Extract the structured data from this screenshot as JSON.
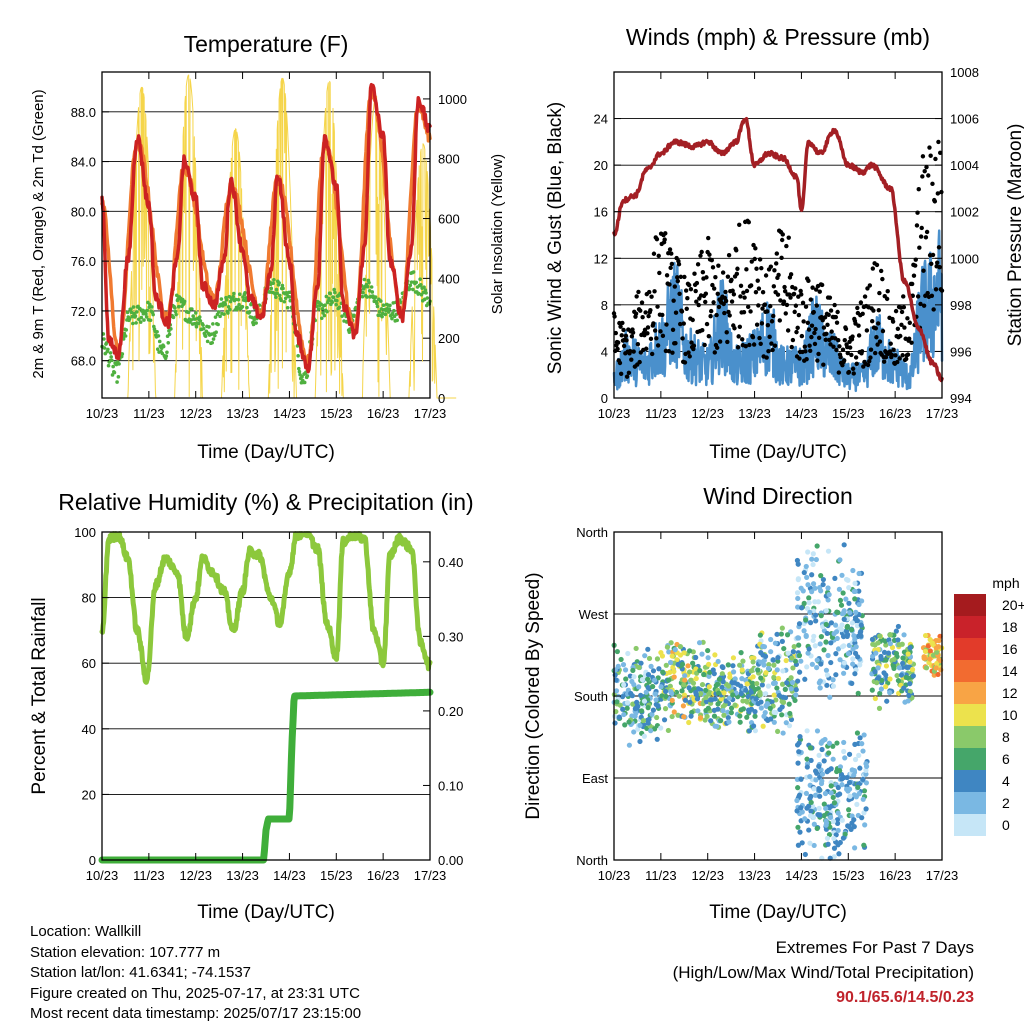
{
  "charts": {
    "temperature": {
      "title": "Temperature (F)",
      "ylabel_left": "2m & 9m T (Red, Orange) & 2m Td (Green)",
      "ylabel_right": "Solar Insolation (Yellow)",
      "xlabel": "Time (Day/UTC)",
      "yticks_left": [
        "68.0",
        "72.0",
        "76.0",
        "80.0",
        "84.0",
        "88.0"
      ],
      "yticks_right": [
        "0",
        "200",
        "400",
        "600",
        "800",
        "1000"
      ]
    },
    "winds": {
      "title": "Winds (mph) & Pressure (mb)",
      "ylabel_left": "Sonic Wind & Gust (Blue, Black)",
      "ylabel_right": "Station Pressure (Maroon)",
      "xlabel": "Time (Day/UTC)",
      "yticks_left": [
        "0",
        "4",
        "8",
        "12",
        "16",
        "20",
        "24"
      ],
      "yticks_right": [
        "994",
        "996",
        "998",
        "1000",
        "1002",
        "1004",
        "1006",
        "1008"
      ]
    },
    "humidity": {
      "title": "Relative Humidity (%) & Precipitation (in)",
      "ylabel_left": "Percent & Total Rainfall",
      "xlabel": "Time (Day/UTC)",
      "yticks_left": [
        "0",
        "20",
        "40",
        "60",
        "80",
        "100"
      ],
      "yticks_right": [
        "0.00",
        "0.10",
        "0.20",
        "0.30",
        "0.40"
      ]
    },
    "direction": {
      "title": "Wind Direction",
      "ylabel_left": "Direction (Colored By Speed)",
      "xlabel": "Time (Day/UTC)",
      "yticks_left": [
        "North",
        "East",
        "South",
        "West",
        "North"
      ],
      "legend_title": "mph",
      "legend_labels": [
        "20+",
        "18",
        "16",
        "14",
        "12",
        "10",
        "8",
        "6",
        "4",
        "2",
        "0"
      ]
    },
    "xticks": [
      "10/23",
      "11/23",
      "12/23",
      "13/23",
      "14/23",
      "15/23",
      "16/23",
      "17/23"
    ]
  },
  "colors": {
    "temp_2m": "#cc2222",
    "temp_9m": "#f07a30",
    "dewpoint": "#4fb03f",
    "solar": "#f5d54a",
    "wind": "#4a90cc",
    "gust": "#000000",
    "pressure": "#a31f24",
    "rh": "#8cc83c",
    "rain": "#3fae3a",
    "extremes": "#c0242c"
  },
  "legend_colors": [
    "#a51b1e",
    "#c9222a",
    "#e23b2a",
    "#f26b30",
    "#f8a445",
    "#ece24d",
    "#8ac96a",
    "#45a66a",
    "#3f86c2",
    "#7ab8e3",
    "#c6e6f7"
  ],
  "chart_data": [
    {
      "type": "line",
      "title": "Temperature (F)",
      "xlabel": "Time (Day/UTC)",
      "ylabel": "2m & 9m T (Red, Orange) & 2m Td (Green)",
      "ylabel_right": "Solar Insolation (Yellow)",
      "x_range": [
        0,
        7
      ],
      "ylim": [
        65,
        91.2
      ],
      "ylim_right": [
        0,
        1090
      ],
      "series": [
        {
          "name": "2m T",
          "axis": "left",
          "x": [
            0,
            0.15,
            0.35,
            0.55,
            0.75,
            1.0,
            1.15,
            1.4,
            1.6,
            1.75,
            2.0,
            2.15,
            2.4,
            2.6,
            2.75,
            3.0,
            3.15,
            3.4,
            3.6,
            3.75,
            4.0,
            4.15,
            4.4,
            4.6,
            4.75,
            5.0,
            5.15,
            5.4,
            5.6,
            5.75,
            6.0,
            6.15,
            6.4,
            6.6,
            6.75,
            7.0
          ],
          "y": [
            81,
            69.5,
            68.5,
            76,
            86,
            80.5,
            73,
            71,
            76,
            84,
            81,
            74,
            72.5,
            76,
            82.5,
            77,
            73,
            71.5,
            75,
            83,
            76,
            70,
            67.5,
            74,
            86,
            82,
            72.5,
            70,
            77,
            90,
            86,
            76,
            71.5,
            77,
            89,
            86.5
          ]
        },
        {
          "name": "9m T",
          "axis": "left",
          "x": [
            0,
            0.35,
            0.75,
            1.4,
            1.75,
            2.4,
            2.75,
            3.4,
            3.75,
            4.4,
            4.75,
            5.4,
            5.75,
            6.4,
            6.75,
            7.0
          ],
          "y": [
            80.5,
            68.8,
            85.5,
            71.5,
            83.5,
            73,
            82,
            72,
            82.5,
            68,
            85.5,
            70.5,
            89.5,
            72,
            88.5,
            86
          ]
        },
        {
          "name": "2m Td",
          "axis": "left",
          "x": [
            0,
            0.3,
            0.6,
            1.0,
            1.3,
            1.6,
            2.0,
            2.3,
            2.6,
            3.0,
            3.3,
            3.6,
            4.0,
            4.3,
            4.6,
            5.0,
            5.3,
            5.6,
            6.0,
            6.3,
            6.6,
            7.0
          ],
          "y": [
            69.5,
            67,
            71.5,
            72,
            68.5,
            72.5,
            71.5,
            70,
            72.5,
            73,
            71.5,
            74,
            73,
            66.5,
            72,
            73,
            71,
            74,
            72,
            72,
            74.5,
            73
          ]
        },
        {
          "name": "Solar Insolation",
          "axis": "right",
          "peaks_x": [
            0.85,
            1.85,
            2.85,
            3.85,
            4.85,
            5.85,
            6.85
          ],
          "peaks_y": [
            1040,
            1080,
            900,
            1070,
            1060,
            1010,
            850
          ]
        }
      ]
    },
    {
      "type": "line",
      "title": "Winds (mph) & Pressure (mb)",
      "xlabel": "Time (Day/UTC)",
      "ylabel": "Sonic Wind & Gust (Blue, Black)",
      "ylabel_right": "Station Pressure (Maroon)",
      "x_range": [
        0,
        7
      ],
      "ylim": [
        0,
        28
      ],
      "ylim_right": [
        994,
        1008
      ],
      "series": [
        {
          "name": "Sonic Wind",
          "axis": "left",
          "x": [
            0,
            0.3,
            0.6,
            1.0,
            1.3,
            1.6,
            2.0,
            2.3,
            2.6,
            3.0,
            3.3,
            3.6,
            4.0,
            4.3,
            4.6,
            5.0,
            5.3,
            5.6,
            6.0,
            6.3,
            6.6,
            7.0
          ],
          "y": [
            2,
            4,
            3,
            5,
            8,
            4,
            3,
            7,
            3,
            4,
            6,
            3,
            3,
            6,
            4,
            2,
            2,
            5,
            3,
            2,
            8,
            10
          ]
        },
        {
          "name": "Gust",
          "axis": "left",
          "x": [
            0,
            0.3,
            0.6,
            1.0,
            1.3,
            1.6,
            2.0,
            2.3,
            2.6,
            3.0,
            3.3,
            3.6,
            4.0,
            4.3,
            4.6,
            5.0,
            5.3,
            5.6,
            6.0,
            6.3,
            6.6,
            7.0
          ],
          "y": [
            6,
            5,
            8,
            12,
            10,
            8,
            11,
            9,
            12,
            13,
            9,
            12,
            8,
            9,
            7,
            5,
            7,
            10,
            6,
            8,
            17,
            20
          ]
        },
        {
          "name": "Station Pressure",
          "axis": "right",
          "x": [
            0,
            0.2,
            0.45,
            0.7,
            1.0,
            1.3,
            1.7,
            2.0,
            2.3,
            2.6,
            2.8,
            3.0,
            3.3,
            3.6,
            3.9,
            4.0,
            4.15,
            4.4,
            4.7,
            5.0,
            5.3,
            5.5,
            5.9,
            6.2,
            6.5,
            6.8,
            7.0
          ],
          "y": [
            1001,
            1002.5,
            1002.7,
            1003.8,
            1004.5,
            1005,
            1004.8,
            1005,
            1004.5,
            1005,
            1006,
            1004,
            1004.5,
            1004.3,
            1003.5,
            1002,
            1005,
            1004.5,
            1005.5,
            1004,
            1003.7,
            1004,
            1003,
            999,
            997,
            995.5,
            994.8
          ]
        }
      ]
    },
    {
      "type": "line",
      "title": "Relative Humidity (%) & Precipitation (in)",
      "xlabel": "Time (Day/UTC)",
      "ylabel": "Percent & Total Rainfall",
      "x_range": [
        0,
        7
      ],
      "ylim": [
        0,
        100
      ],
      "ylim_right": [
        0,
        0.44
      ],
      "series": [
        {
          "name": "Relative Humidity",
          "axis": "left",
          "x": [
            0,
            0.15,
            0.35,
            0.55,
            0.75,
            0.95,
            1.15,
            1.35,
            1.6,
            1.8,
            2.0,
            2.15,
            2.35,
            2.6,
            2.8,
            3.0,
            3.15,
            3.35,
            3.6,
            3.8,
            4.0,
            4.15,
            4.35,
            4.6,
            4.8,
            5.0,
            5.15,
            5.35,
            5.6,
            5.8,
            6.0,
            6.15,
            6.35,
            6.6,
            6.8,
            7.0
          ],
          "y": [
            69,
            98,
            99,
            92,
            70,
            55,
            84,
            92,
            88,
            68,
            80,
            92,
            88,
            82,
            70,
            82,
            94,
            93,
            80,
            72,
            88,
            99,
            100,
            95,
            72,
            62,
            97,
            99,
            98,
            70,
            60,
            93,
            98,
            95,
            66,
            59
          ]
        },
        {
          "name": "Total Precipitation",
          "axis": "right",
          "x": [
            0,
            3.45,
            3.5,
            3.55,
            4.0,
            4.05,
            4.1,
            7.0
          ],
          "y": [
            0,
            0,
            0.04,
            0.055,
            0.055,
            0.15,
            0.22,
            0.225
          ]
        }
      ]
    },
    {
      "type": "scatter",
      "title": "Wind Direction",
      "xlabel": "Time (Day/UTC)",
      "ylabel": "Direction (Colored By Speed)",
      "x_range": [
        0,
        7
      ],
      "y_categories": [
        "North",
        "East",
        "South",
        "West",
        "North"
      ],
      "color_legend": {
        "title": "mph",
        "labels": [
          "20+",
          "18",
          "16",
          "14",
          "12",
          "10",
          "8",
          "6",
          "4",
          "2",
          "0"
        ]
      },
      "clusters": [
        {
          "x": [
            0,
            1
          ],
          "direction_center": "South",
          "speed": "0-6"
        },
        {
          "x": [
            1,
            2
          ],
          "direction_center": "South",
          "speed": "2-8"
        },
        {
          "x": [
            2,
            3
          ],
          "direction_center": "South",
          "speed": "2-8"
        },
        {
          "x": [
            3,
            4
          ],
          "direction_center": "South-West",
          "speed": "0-8"
        },
        {
          "x": [
            4,
            5.3
          ],
          "direction_center": "East-North",
          "speed": "0-6"
        },
        {
          "x": [
            5.5,
            6.3
          ],
          "direction_center": "South-West",
          "speed": "2-8"
        },
        {
          "x": [
            6.6,
            7
          ],
          "direction_center": "West-South",
          "speed": "8-14"
        }
      ]
    }
  ],
  "footer": {
    "location": "Location: Wallkill",
    "elevation": "Station elevation: 107.777 m",
    "latlon": "Station lat/lon: 41.6341; -74.1537",
    "created": "Figure created on Thu, 2025-07-17, at 23:31 UTC",
    "recent": "Most recent data timestamp: 2025/07/17 23:15:00",
    "extremes_title": "Extremes For Past 7 Days",
    "extremes_sub": "(High/Low/Max Wind/Total Precipitation)",
    "extremes_values": "90.1/65.6/14.5/0.23"
  }
}
